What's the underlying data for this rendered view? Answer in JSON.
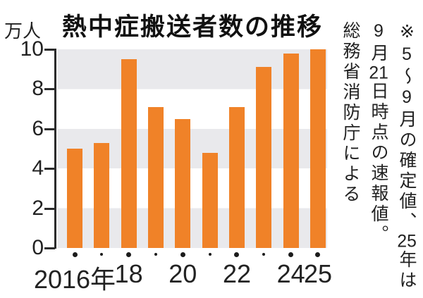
{
  "chart_data": {
    "type": "bar",
    "title": "熱中症搬送者数の推移",
    "unit_label": "万人",
    "categories": [
      "2016",
      "2017",
      "2018",
      "2019",
      "2020",
      "2021",
      "2022",
      "2023",
      "2024",
      "2025"
    ],
    "x_tick_labels": [
      "2016年",
      "",
      "18",
      "",
      "20",
      "",
      "22",
      "",
      "24",
      "25"
    ],
    "values": [
      5.0,
      5.3,
      9.5,
      7.1,
      6.5,
      4.8,
      7.1,
      9.1,
      9.8,
      10.0
    ],
    "ylim": [
      0,
      10
    ],
    "yticks": [
      0,
      2,
      4,
      6,
      8,
      10
    ],
    "grid": "alternating horizontal gray bands",
    "legend": "none",
    "colors": {
      "bar": "#f08228",
      "band": "#e9e9ec",
      "text": "#1f1f1f"
    }
  },
  "note": {
    "line1_parts": [
      "※5〜9月の確定値、",
      "25",
      "年は"
    ],
    "line2_parts": [
      "9月",
      "21",
      "日時点の速報値。"
    ],
    "line3": "総務省消防庁による"
  }
}
